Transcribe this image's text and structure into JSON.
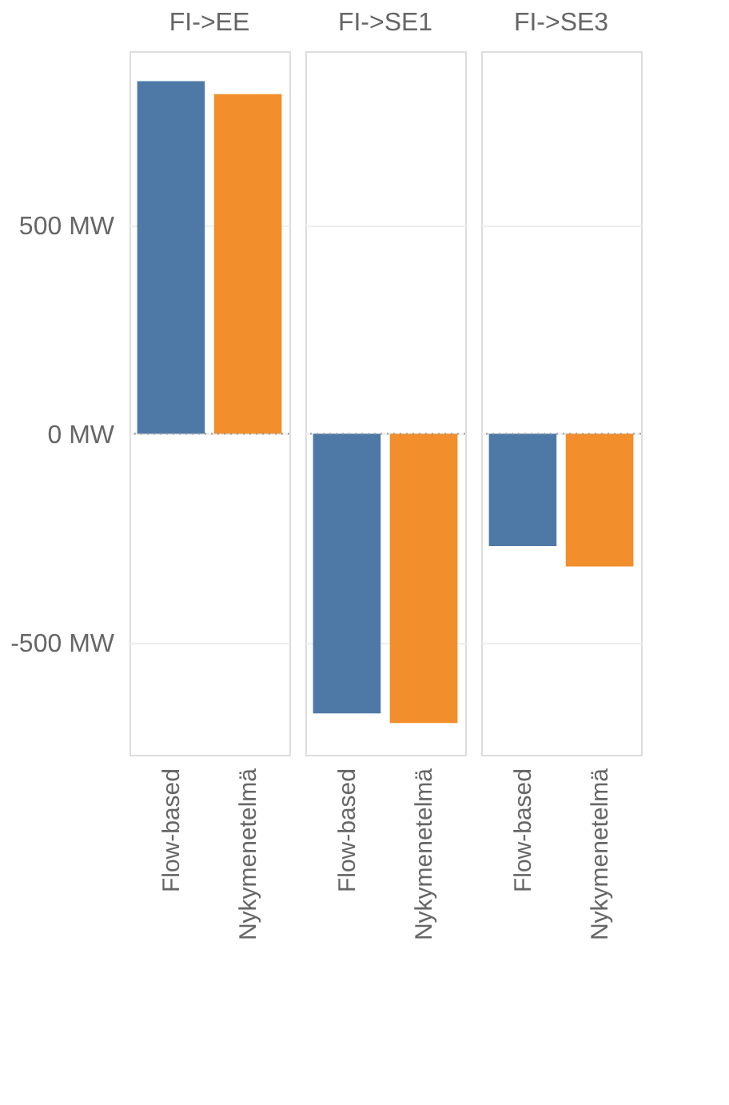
{
  "chart_data": [
    {
      "type": "bar",
      "title": "FI->EE",
      "categories": [
        "Flow-based",
        "Nykymenetelmä"
      ],
      "values": [
        845,
        814
      ],
      "colors": [
        "#4e79a7",
        "#f28e2b"
      ],
      "ylim": [
        -769,
        917
      ],
      "yticks": [
        {
          "value": -500,
          "label": "-500 MW"
        },
        {
          "value": 0,
          "label": "0 MW"
        },
        {
          "value": 500,
          "label": "500 MW"
        }
      ],
      "grid": "y",
      "ref_lines": [
        {
          "axis": "y",
          "value": 0,
          "line_style": "dotted",
          "color": "#999999"
        }
      ]
    },
    {
      "type": "bar",
      "title": "FI->SE1",
      "categories": [
        "Flow-based",
        "Nykymenetelmä"
      ],
      "values": [
        -670,
        -693
      ],
      "colors": [
        "#4e79a7",
        "#f28e2b"
      ],
      "ylim": [
        -769,
        917
      ],
      "yticks": [
        {
          "value": -500,
          "label": null
        },
        {
          "value": 0,
          "label": null
        },
        {
          "value": 500,
          "label": null
        }
      ],
      "grid": "y",
      "tick_labels": "x",
      "ref_lines": [
        {
          "axis": "y",
          "value": 0,
          "line_style": "dotted",
          "color": "#999999"
        }
      ]
    },
    {
      "type": "bar",
      "title": "FI->SE3",
      "categories": [
        "Flow-based",
        "Nykymenetelmä"
      ],
      "values": [
        -269,
        -318
      ],
      "colors": [
        "#4e79a7",
        "#f28e2b"
      ],
      "ylim": [
        -769,
        917
      ],
      "yticks": [
        {
          "value": -500,
          "label": null
        },
        {
          "value": 0,
          "label": null
        },
        {
          "value": 500,
          "label": null
        }
      ],
      "grid": "y",
      "tick_labels": "x",
      "ref_lines": [
        {
          "axis": "y",
          "value": 0,
          "line_style": "dotted",
          "color": "#999999"
        }
      ]
    }
  ]
}
